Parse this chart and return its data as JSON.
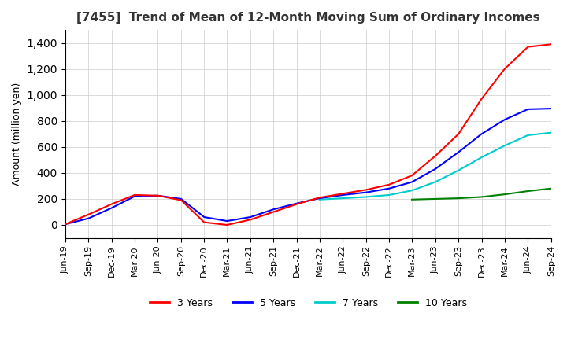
{
  "title": "[7455]  Trend of Mean of 12-Month Moving Sum of Ordinary Incomes",
  "ylabel": "Amount (million yen)",
  "ylim": [
    -100,
    1500
  ],
  "yticks": [
    0,
    200,
    400,
    600,
    800,
    1000,
    1200,
    1400
  ],
  "line_colors": {
    "3y": "#ff0000",
    "5y": "#0000ff",
    "7y": "#00cccc",
    "10y": "#008000"
  },
  "legend_labels": [
    "3 Years",
    "5 Years",
    "7 Years",
    "10 Years"
  ],
  "background_color": "#ffffff",
  "grid_color": "#cccccc"
}
